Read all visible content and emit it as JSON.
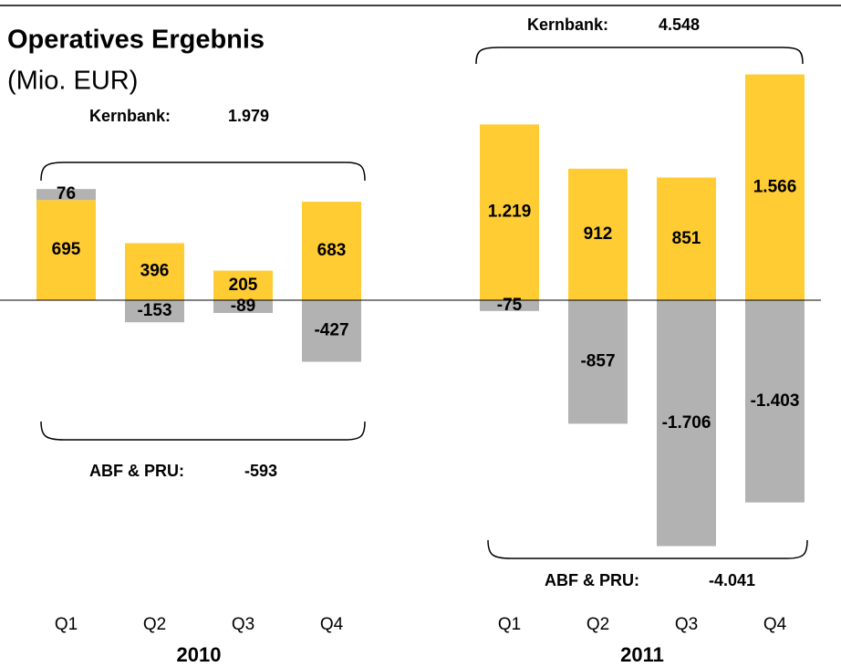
{
  "chart_data": {
    "type": "bar",
    "title": "Operatives Ergebnis",
    "subtitle": "(Mio. EUR)",
    "stacked": true,
    "groups": [
      "2010",
      "2011"
    ],
    "categories": [
      "Q1",
      "Q2",
      "Q3",
      "Q4",
      "Q1",
      "Q2",
      "Q3",
      "Q4"
    ],
    "series": [
      {
        "name": "Kernbank",
        "color": "#ffcc33",
        "values": [
          695,
          396,
          205,
          683,
          1219,
          912,
          851,
          1566
        ],
        "value_labels": [
          "695",
          "396",
          "205",
          "683",
          "1.219",
          "912",
          "851",
          "1.566"
        ]
      },
      {
        "name": "ABF & PRU",
        "color": "#b2b2b2",
        "values": [
          76,
          -153,
          -89,
          -427,
          -75,
          -857,
          -1706,
          -1403
        ],
        "value_labels": [
          "76",
          "-153",
          "-89",
          "-427",
          "-75",
          "-857",
          "-1.706",
          "-1.403"
        ]
      }
    ],
    "annotations": [
      {
        "label": "Kernbank:",
        "value": "1.979"
      },
      {
        "label": "ABF & PRU:",
        "value": "-593"
      },
      {
        "label": "Kernbank:",
        "value": "4.548"
      },
      {
        "label": "ABF & PRU:",
        "value": "-4.041"
      }
    ]
  }
}
